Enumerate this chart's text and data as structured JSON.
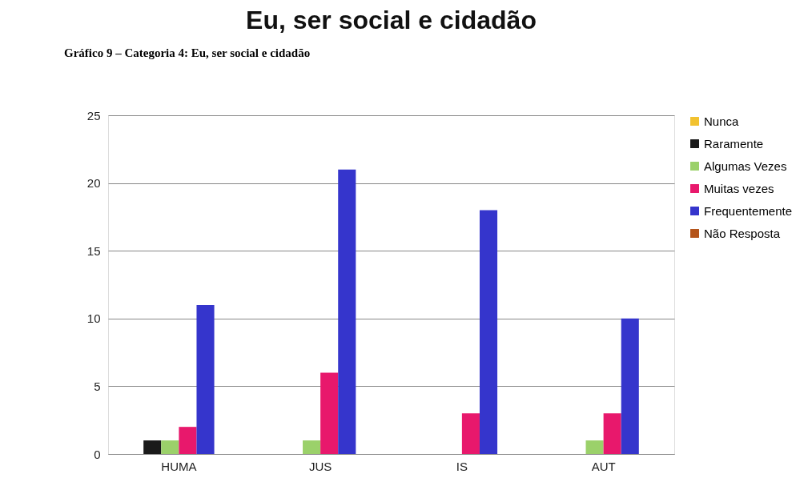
{
  "chart_data": {
    "type": "bar",
    "title": "Eu, ser social e cidadão",
    "annotations": [
      "Gráfico 9 – Categoria 4: Eu, ser social e cidadão"
    ],
    "categories": [
      "HUMA",
      "JUS",
      "IS",
      "AUT"
    ],
    "series": [
      {
        "name": "Nunca",
        "color": "#f2c230",
        "values": [
          0,
          0,
          0,
          0
        ]
      },
      {
        "name": "Raramente",
        "color": "#1a1a1a",
        "values": [
          1,
          0,
          0,
          0
        ]
      },
      {
        "name": "Algumas Vezes",
        "color": "#9bd16a",
        "values": [
          1,
          1,
          0,
          1
        ]
      },
      {
        "name": "Muitas vezes",
        "color": "#e8186c",
        "values": [
          2,
          6,
          3,
          3
        ]
      },
      {
        "name": "Frequentemente",
        "color": "#3535cc",
        "values": [
          11,
          21,
          18,
          10
        ]
      },
      {
        "name": "Não Resposta",
        "color": "#b4541a",
        "values": [
          0,
          0,
          0,
          0
        ]
      }
    ],
    "ylim": [
      0,
      25
    ],
    "yticks": [
      0,
      5,
      10,
      15,
      20,
      25
    ],
    "grid": "y",
    "legend": "right"
  }
}
